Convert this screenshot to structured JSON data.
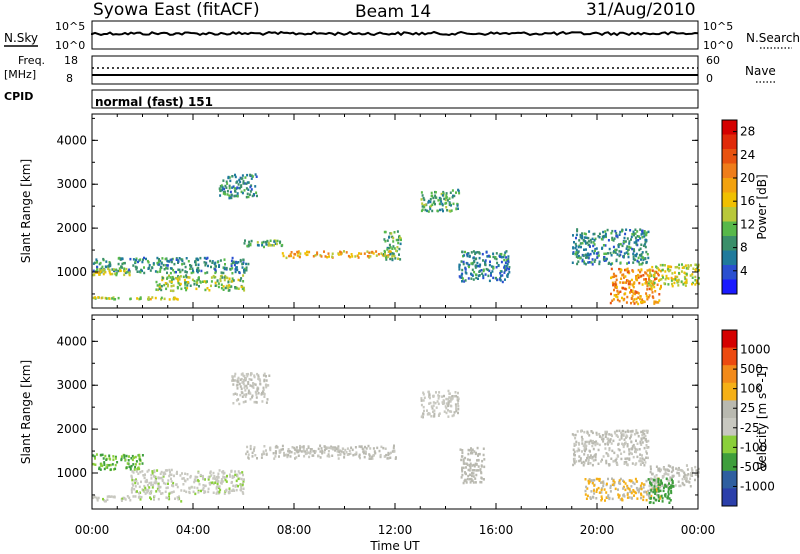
{
  "header": {
    "station": "Syowa East (fitACF)",
    "beam": "Beam 14",
    "date": "31/Aug/2010"
  },
  "strip_labels": {
    "nsky": "N.Sky",
    "nsky_ticks": [
      "10^5",
      "10^0"
    ],
    "nsearch": "N.Search",
    "nsearch_ticks": [
      "10^5",
      "10^0"
    ],
    "freq": "Freq.",
    "freq_unit": "[MHz]",
    "freq_ticks": [
      "18",
      "8"
    ],
    "nave": "Nave",
    "nave_ticks": [
      "60",
      "0"
    ],
    "cpid": "CPID",
    "mode": "normal (fast) 151"
  },
  "colors": {
    "power": [
      "#1a1aff",
      "#2a4fd0",
      "#1f7a9c",
      "#3a8f6a",
      "#57b84a",
      "#b8c83a",
      "#f0c000",
      "#f3a20e",
      "#ef7d1a",
      "#e8520f",
      "#e02a0a",
      "#d40000"
    ],
    "velocity": [
      "#d40000",
      "#ec4a10",
      "#f28a1a",
      "#f5b017",
      "#b9b9b0",
      "#c8c8c0",
      "#8acf3a",
      "#3e9e3c",
      "#2f5fa0",
      "#2b3faa"
    ]
  },
  "chart_data": [
    {
      "type": "heatmap",
      "title": "",
      "xlabel": "Time UT",
      "ylabel": "Slant Range [km]",
      "x_ticks": [
        "00:00",
        "04:00",
        "08:00",
        "12:00",
        "16:00",
        "20:00",
        "00:00"
      ],
      "y_ticks": [
        "1000",
        "2000",
        "3000",
        "4000"
      ],
      "xlim_hours": [
        0,
        24
      ],
      "ylim_km": [
        180,
        4600
      ],
      "colorbar_label": "Power [dB]",
      "colorbar_ticks": [
        "4",
        "8",
        "12",
        "16",
        "20",
        "24",
        "28"
      ],
      "colorbar_range": [
        0,
        30
      ],
      "regions": [
        {
          "t0": 0.0,
          "t1": 6.2,
          "r0": 1350,
          "r1": 1000,
          "v": 8
        },
        {
          "t0": 0.0,
          "t1": 1.5,
          "r0": 1100,
          "r1": 950,
          "v": 14
        },
        {
          "t0": 0.0,
          "t1": 3.5,
          "r0": 450,
          "r1": 400,
          "v": 14
        },
        {
          "t0": 2.5,
          "t1": 6.0,
          "r0": 950,
          "r1": 600,
          "v": 12
        },
        {
          "t0": 5.0,
          "t1": 6.5,
          "r0": 3250,
          "r1": 2700,
          "v": 8
        },
        {
          "t0": 6.0,
          "t1": 7.5,
          "r0": 1750,
          "r1": 1600,
          "v": 10
        },
        {
          "t0": 7.5,
          "t1": 11.8,
          "r0": 1500,
          "r1": 1350,
          "v": 18
        },
        {
          "t0": 11.5,
          "t1": 12.2,
          "r0": 2000,
          "r1": 1300,
          "v": 10
        },
        {
          "t0": 13.0,
          "t1": 14.5,
          "r0": 2900,
          "r1": 2400,
          "v": 9
        },
        {
          "t0": 14.5,
          "t1": 16.5,
          "r0": 1500,
          "r1": 800,
          "v": 7
        },
        {
          "t0": 19.0,
          "t1": 22.0,
          "r0": 2000,
          "r1": 1200,
          "v": 8
        },
        {
          "t0": 20.5,
          "t1": 22.5,
          "r0": 1100,
          "r1": 300,
          "v": 20
        },
        {
          "t0": 22.0,
          "t1": 24.0,
          "r0": 1200,
          "r1": 700,
          "v": 14
        }
      ]
    },
    {
      "type": "heatmap",
      "title": "",
      "xlabel": "Time UT",
      "ylabel": "Slant Range [km]",
      "x_ticks": [
        "00:00",
        "04:00",
        "08:00",
        "12:00",
        "16:00",
        "20:00",
        "00:00"
      ],
      "y_ticks": [
        "1000",
        "2000",
        "3000",
        "4000"
      ],
      "xlim_hours": [
        0,
        24
      ],
      "ylim_km": [
        180,
        4600
      ],
      "colorbar_label": "Velocity [m s^-1]",
      "colorbar_ticks": [
        "1000",
        "500",
        "100",
        "25",
        "-25",
        "-100",
        "-500",
        "-1000"
      ],
      "colorbar_range": [
        -1000,
        1000
      ],
      "regions": [
        {
          "t0": 0.0,
          "t1": 2.0,
          "r0": 1450,
          "r1": 1100,
          "v": -400
        },
        {
          "t0": 0.0,
          "t1": 3.5,
          "r0": 500,
          "r1": 380,
          "v": -150
        },
        {
          "t0": 1.5,
          "t1": 6.0,
          "r0": 1100,
          "r1": 550,
          "v": -150
        },
        {
          "t0": 5.5,
          "t1": 7.0,
          "r0": 3300,
          "r1": 2600,
          "v": 0
        },
        {
          "t0": 6.0,
          "t1": 12.0,
          "r0": 1650,
          "r1": 1350,
          "v": 0
        },
        {
          "t0": 13.0,
          "t1": 14.5,
          "r0": 2900,
          "r1": 2300,
          "v": -50
        },
        {
          "t0": 14.5,
          "t1": 15.5,
          "r0": 1600,
          "r1": 800,
          "v": 80
        },
        {
          "t0": 19.0,
          "t1": 22.0,
          "r0": 2000,
          "r1": 1200,
          "v": 10
        },
        {
          "t0": 19.5,
          "t1": 22.5,
          "r0": 900,
          "r1": 400,
          "v": 200
        },
        {
          "t0": 22.0,
          "t1": 24.0,
          "r0": 1200,
          "r1": 700,
          "v": 0
        },
        {
          "t0": 22.0,
          "t1": 23.0,
          "r0": 900,
          "r1": 300,
          "v": -500
        }
      ]
    }
  ]
}
